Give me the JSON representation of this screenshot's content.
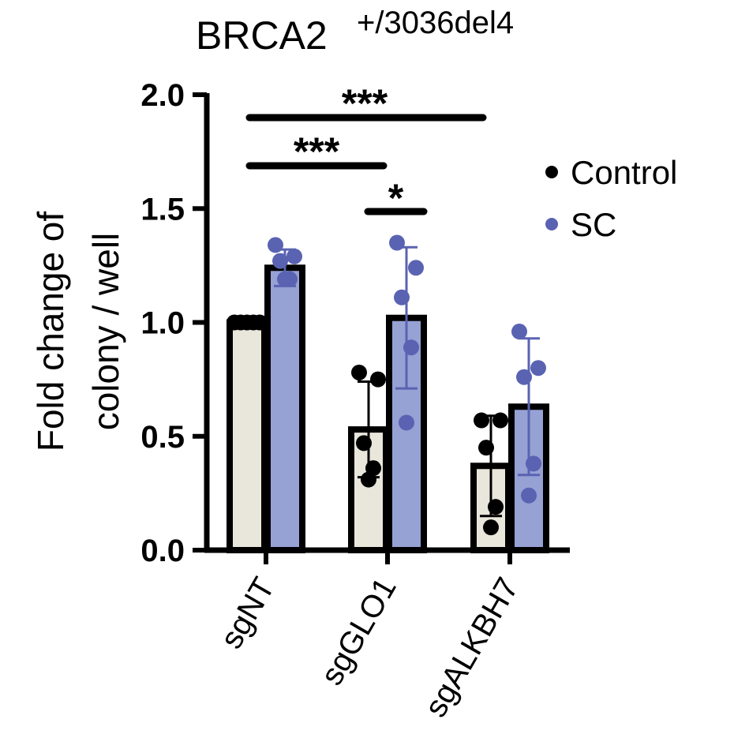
{
  "chart_data": {
    "type": "bar",
    "title": "BRCA2",
    "title_superscript": "+/3036del4",
    "ylabel_line1": "Fold change of",
    "ylabel_line2": "colony / well",
    "xlabel": "",
    "ylim": [
      0,
      2.0
    ],
    "yticks": [
      "0.0",
      "0.5",
      "1.0",
      "1.5",
      "2.0"
    ],
    "categories": [
      "sgNT",
      "sgGLO1",
      "sgALKBH7"
    ],
    "grid": false,
    "legend_position": "right",
    "series": [
      {
        "name": "Control",
        "color_bar": "#e9e6dc",
        "color_point": "#000000",
        "values": [
          1.0,
          0.53,
          0.37
        ],
        "error": [
          0.0,
          0.21,
          0.22
        ],
        "points": [
          [
            1.0,
            1.0,
            1.0,
            1.0,
            1.0
          ],
          [
            0.78,
            0.75,
            0.47,
            0.36,
            0.31
          ],
          [
            0.57,
            0.57,
            0.45,
            0.19,
            0.1
          ]
        ]
      },
      {
        "name": "SC",
        "color_bar": "#96a1d4",
        "color_point": "#5a63b2",
        "values": [
          1.24,
          1.02,
          0.63
        ],
        "error": [
          0.08,
          0.31,
          0.3
        ],
        "points": [
          [
            1.34,
            1.29,
            1.27,
            1.19,
            1.19
          ],
          [
            1.35,
            1.24,
            1.11,
            0.89,
            0.56
          ],
          [
            0.96,
            0.8,
            0.76,
            0.38,
            0.24
          ]
        ]
      }
    ],
    "significance": [
      {
        "from": "sgNT-Control",
        "to": "sgALKBH7-Control",
        "label": "***"
      },
      {
        "from": "sgNT-Control",
        "to": "sgGLO1-Control",
        "label": "***"
      },
      {
        "from": "sgGLO1-Control",
        "to": "sgGLO1-SC",
        "label": "*"
      }
    ]
  }
}
